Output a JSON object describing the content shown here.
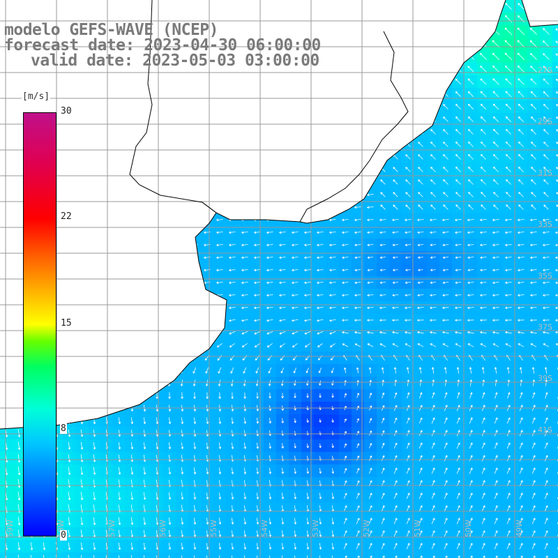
{
  "title": {
    "line1": "modelo GEFS-WAVE (NCEP)",
    "line2": "forecast date: 2023-04-30 06:00:00",
    "line3": "valid date: 2023-05-03 03:00:00"
  },
  "legend": {
    "units": "[m/s]",
    "ticks": [
      "30",
      "22",
      "15",
      "8",
      "0"
    ]
  },
  "lat_labels": [
    "27S",
    "29S",
    "31S",
    "33S",
    "35S",
    "37S",
    "39S",
    "41S"
  ],
  "lon_labels": [
    "59W",
    "58W",
    "57W",
    "56W",
    "55W",
    "54W",
    "53W",
    "52W",
    "51W",
    "50W",
    "49W"
  ],
  "colors": {
    "land": "#ffffff",
    "grid": "#999999",
    "coast": "#000000",
    "arrow": "#ffffff"
  },
  "field": {
    "variable": "wind speed and direction",
    "calm_center": "near 37.5S 53.5W",
    "max_region": "northeast corner near 27S 49W"
  }
}
